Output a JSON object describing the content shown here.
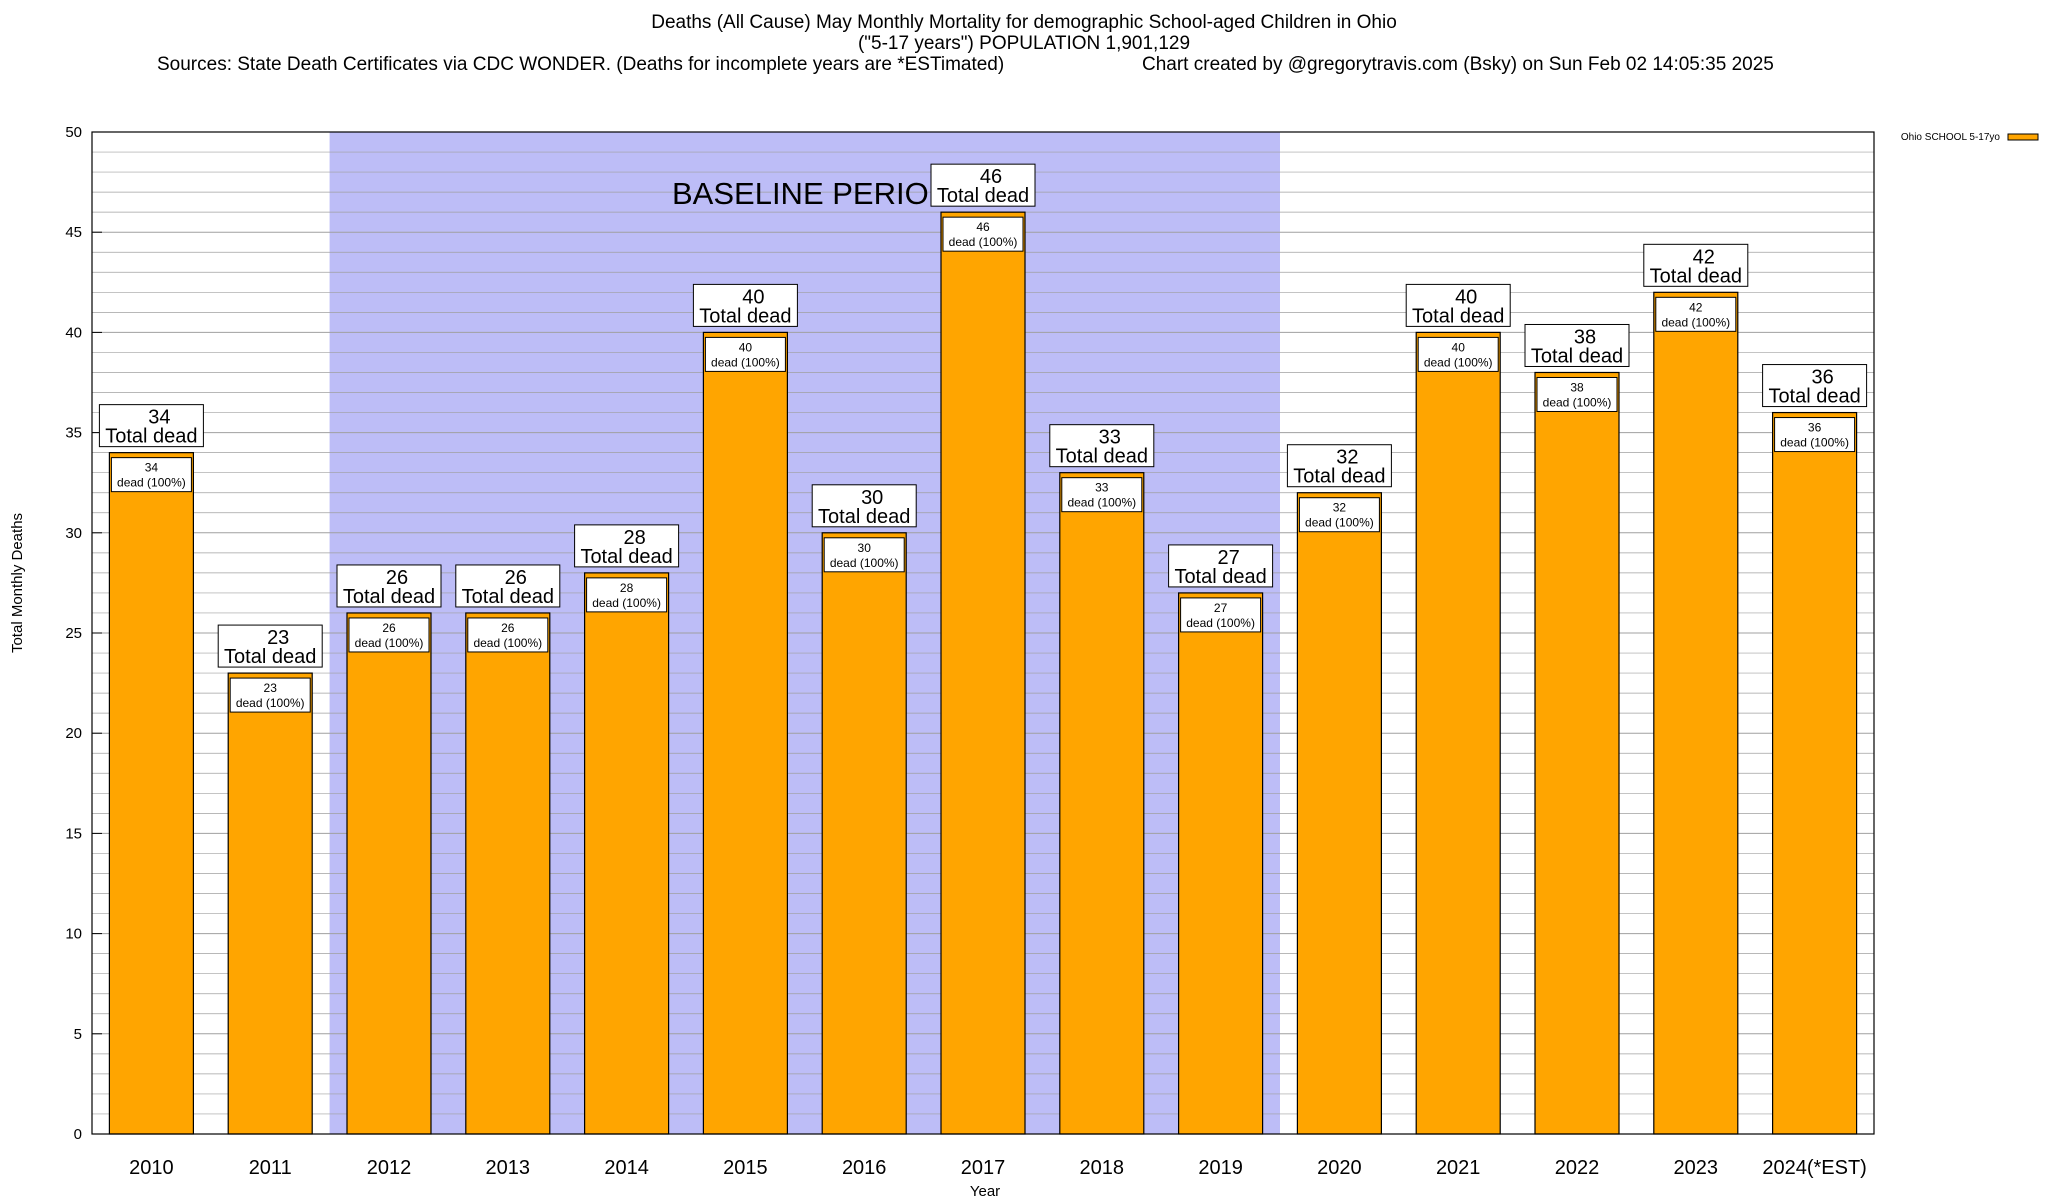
{
  "chart_data": {
    "type": "bar",
    "title": "Deaths (All Cause) May Monthly Mortality for demographic School-aged Children in Ohio",
    "subtitle": "(\"5-17 years\") POPULATION 1,901,129",
    "sources": "Sources: State Death Certificates via CDC WONDER. (Deaths for incomplete years are *ESTimated)",
    "credit": "Chart created by @gregorytravis.com (Bsky) on Sun Feb 02 14:05:35 2025",
    "xlabel": "Year",
    "ylabel": "Total Monthly Deaths",
    "ylim": [
      0,
      50
    ],
    "y_ticks": [
      0,
      5,
      10,
      15,
      20,
      25,
      30,
      35,
      40,
      45,
      50
    ],
    "grid": true,
    "legend": {
      "position": "top-right",
      "entries": [
        "Ohio SCHOOL 5-17yo"
      ]
    },
    "annotation": "BASELINE PERIOD",
    "baseline_period": {
      "start": "2012",
      "end": "2019"
    },
    "categories": [
      "2010",
      "2011",
      "2012",
      "2013",
      "2014",
      "2015",
      "2016",
      "2017",
      "2018",
      "2019",
      "2020",
      "2021",
      "2022",
      "2023",
      "2024(*EST)"
    ],
    "series": [
      {
        "name": "Ohio SCHOOL 5-17yo",
        "values": [
          34,
          23,
          26,
          26,
          28,
          40,
          30,
          46,
          33,
          27,
          32,
          40,
          38,
          42,
          36
        ]
      }
    ],
    "label_top": "Total dead",
    "label_inner": "dead (100%)",
    "colors": {
      "bar": "#FFA500",
      "baseline_shade": "#BDBDF7",
      "grid": "#A0A0A0"
    }
  }
}
